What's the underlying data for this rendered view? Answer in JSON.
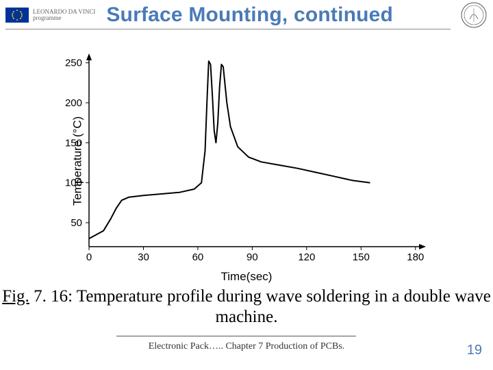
{
  "header": {
    "program_line1": "LEONARDO DA VINCI",
    "program_line2": "programme",
    "title": "Surface Mounting, continued"
  },
  "chart": {
    "type": "line",
    "xlabel": "Time(sec)",
    "ylabel": "Temperature (°C)",
    "xlim": [
      0,
      185
    ],
    "ylim": [
      20,
      260
    ],
    "xtick_values": [
      0,
      30,
      60,
      90,
      120,
      150,
      180
    ],
    "ytick_values": [
      50,
      100,
      150,
      200,
      250
    ],
    "line_color": "#000000",
    "line_width": 2.0,
    "axis_color": "#000000",
    "axis_width": 1.5,
    "background_color": "#ffffff",
    "series": [
      {
        "x": 0,
        "y": 30
      },
      {
        "x": 8,
        "y": 40
      },
      {
        "x": 12,
        "y": 55
      },
      {
        "x": 15,
        "y": 68
      },
      {
        "x": 18,
        "y": 78
      },
      {
        "x": 22,
        "y": 82
      },
      {
        "x": 30,
        "y": 84
      },
      {
        "x": 40,
        "y": 86
      },
      {
        "x": 50,
        "y": 88
      },
      {
        "x": 58,
        "y": 92
      },
      {
        "x": 62,
        "y": 100
      },
      {
        "x": 64,
        "y": 140
      },
      {
        "x": 65,
        "y": 200
      },
      {
        "x": 66,
        "y": 252
      },
      {
        "x": 67,
        "y": 248
      },
      {
        "x": 68,
        "y": 210
      },
      {
        "x": 69,
        "y": 165
      },
      {
        "x": 70,
        "y": 150
      },
      {
        "x": 71,
        "y": 175
      },
      {
        "x": 72,
        "y": 220
      },
      {
        "x": 73,
        "y": 248
      },
      {
        "x": 74,
        "y": 245
      },
      {
        "x": 76,
        "y": 200
      },
      {
        "x": 78,
        "y": 170
      },
      {
        "x": 82,
        "y": 145
      },
      {
        "x": 88,
        "y": 132
      },
      {
        "x": 95,
        "y": 126
      },
      {
        "x": 105,
        "y": 122
      },
      {
        "x": 115,
        "y": 118
      },
      {
        "x": 125,
        "y": 113
      },
      {
        "x": 135,
        "y": 108
      },
      {
        "x": 145,
        "y": 103
      },
      {
        "x": 155,
        "y": 100
      }
    ]
  },
  "caption": {
    "fig_label": "Fig.",
    "text": " 7. 16: Temperature profile during wave soldering in a double wave machine."
  },
  "footer": {
    "text": "Electronic Pack…..   Chapter 7 Production of PCBs.",
    "page": "19"
  },
  "colors": {
    "title_color": "#4a7ab8",
    "page_num_color": "#4a7ab8",
    "eu_blue": "#003399",
    "eu_gold": "#ffcc00"
  }
}
